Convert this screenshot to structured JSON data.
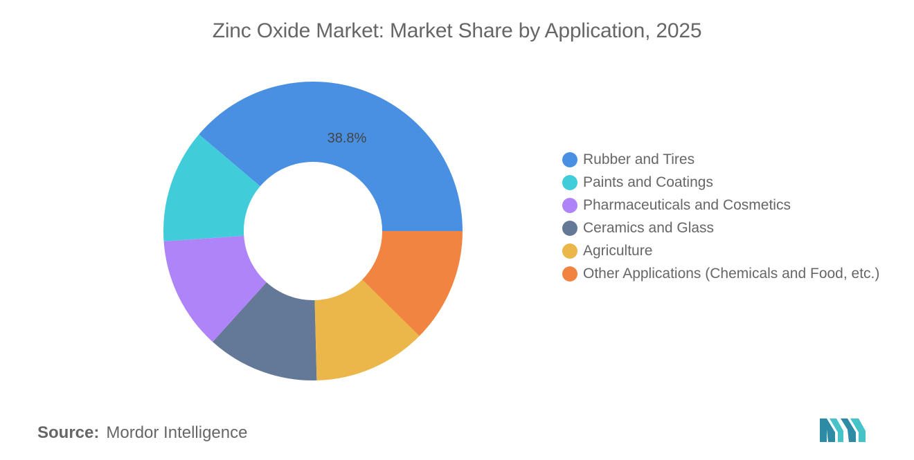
{
  "chart_data": {
    "type": "pie",
    "title": "Zinc Oxide Market: Market Share by Application, 2025",
    "donut": true,
    "categories": [
      "Rubber and Tires",
      "Paints and Coatings",
      "Pharmaceuticals and Cosmetics",
      "Ceramics and Glass",
      "Agriculture",
      "Other Applications (Chemicals and Food, etc.)"
    ],
    "values": [
      38.8,
      12.3,
      12.2,
      12.1,
      12.2,
      12.4
    ],
    "data_labels": [
      "38.8%",
      "",
      "",
      "",
      "",
      ""
    ],
    "colors": [
      "#4A90E2",
      "#40CDD9",
      "#B084F9",
      "#647897",
      "#EBB64A",
      "#F28441"
    ],
    "legend_position": "right"
  },
  "source": {
    "label": "Source:",
    "text": "Mordor Intelligence"
  },
  "logo": {
    "icon": "mordor-intelligence-logo",
    "colors": [
      "#2E8BA6",
      "#46C2C9"
    ]
  }
}
